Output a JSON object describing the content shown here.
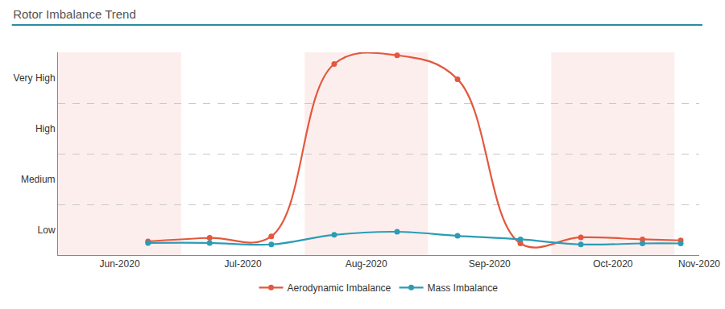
{
  "chart_data": {
    "type": "line",
    "title": "Rotor Imbalance Trend",
    "x": [
      6.73,
      7.23,
      7.73,
      8.24,
      8.75,
      9.24,
      9.75,
      10.24,
      10.74,
      11.05
    ],
    "xlim": [
      6,
      11.2
    ],
    "xticks": [
      {
        "value": 6.5,
        "label": "Jun-2020"
      },
      {
        "value": 7.5,
        "label": "Jul-2020"
      },
      {
        "value": 8.5,
        "label": "Aug-2020"
      },
      {
        "value": 9.5,
        "label": "Sep-2020"
      },
      {
        "value": 10.5,
        "label": "Oct-2020"
      },
      {
        "value": 11.2,
        "label": "Nov-2020"
      }
    ],
    "ylim": [
      0,
      4
    ],
    "yticks": [
      {
        "value": 0.5,
        "label": "Low"
      },
      {
        "value": 1.5,
        "label": "Medium"
      },
      {
        "value": 2.5,
        "label": "High"
      },
      {
        "value": 3.5,
        "label": "Very High"
      }
    ],
    "grid": true,
    "legend": "bottom",
    "series": [
      {
        "name": "Aerodynamic Imbalance",
        "color": "#e4573d",
        "marker": "circle",
        "line_style": "spline",
        "values": [
          0.27,
          0.34,
          0.37,
          3.77,
          3.94,
          3.47,
          0.23,
          0.35,
          0.31,
          0.29
        ]
      },
      {
        "name": "Mass Imbalance",
        "color": "#2a9db5",
        "marker": "circle",
        "line_style": "spline",
        "values": [
          0.24,
          0.24,
          0.21,
          0.4,
          0.46,
          0.38,
          0.31,
          0.21,
          0.23,
          0.23
        ]
      }
    ]
  }
}
